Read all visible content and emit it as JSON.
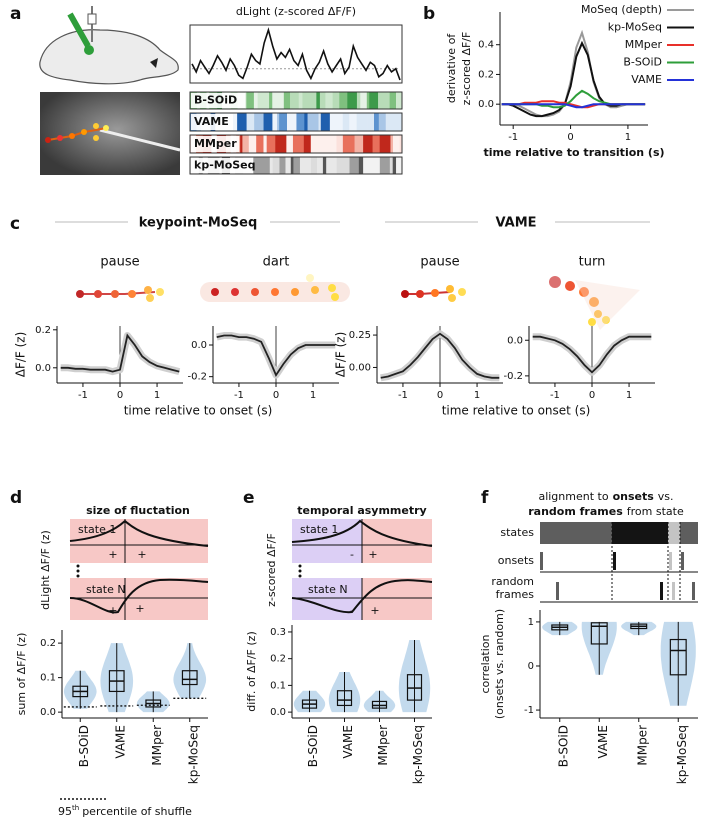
{
  "panel_labels": [
    "a",
    "b",
    "c",
    "d",
    "e",
    "f"
  ],
  "chart_data": [
    {
      "type": "trace",
      "title": "dLight (z-scored ΔF/F)",
      "color": "#111111",
      "hlines": [
        0
      ],
      "values": [
        0.3,
        -0.2,
        0.5,
        0.1,
        -0.3,
        0.2,
        0.8,
        0.4,
        -0.1,
        0.6,
        0.2,
        -0.4,
        -0.6,
        0.1,
        0.9,
        0.5,
        0.3,
        1.6,
        2.4,
        1.4,
        0.6,
        1.0,
        0.7,
        1.2,
        0.5,
        0.2,
        0.9,
        -0.1,
        -0.6,
        0.0,
        0.4,
        1.1,
        0.3,
        -0.2,
        0.2,
        0.6,
        -0.3,
        0.1,
        1.4,
        0.7,
        0.3,
        -0.1,
        0.4,
        0.2,
        -0.5,
        -0.3,
        0.2,
        -0.2,
        0.0,
        -0.7
      ],
      "ethogram_labels": [
        "B-SOiD",
        "VAME",
        "MMper",
        "kp-MoSeq"
      ]
    },
    {
      "type": "line",
      "xlabel": "time relative to transition (s)",
      "ylabel": [
        "derivative of",
        "z-scored ΔF/F"
      ],
      "x": [
        -1.2,
        -1.1,
        -1.0,
        -0.9,
        -0.8,
        -0.7,
        -0.6,
        -0.5,
        -0.4,
        -0.3,
        -0.2,
        -0.1,
        0,
        0.1,
        0.2,
        0.3,
        0.4,
        0.5,
        0.6,
        0.7,
        0.8,
        0.9,
        1.0,
        1.1,
        1.2,
        1.3
      ],
      "series": [
        {
          "name": "MoSeq (depth)",
          "color": "#9a9a9a",
          "values": [
            0,
            0,
            0,
            -0.01,
            -0.03,
            -0.05,
            -0.07,
            -0.08,
            -0.08,
            -0.07,
            -0.05,
            0.0,
            0.15,
            0.38,
            0.48,
            0.35,
            0.15,
            0.04,
            0,
            -0.02,
            -0.02,
            -0.01,
            0,
            0,
            0,
            0
          ]
        },
        {
          "name": "kp-MoSeq",
          "color": "#111111",
          "values": [
            0,
            0,
            -0.01,
            -0.03,
            -0.05,
            -0.07,
            -0.08,
            -0.08,
            -0.07,
            -0.06,
            -0.04,
            0.0,
            0.12,
            0.32,
            0.41,
            0.33,
            0.16,
            0.05,
            0,
            -0.01,
            -0.01,
            0,
            0,
            0,
            0,
            0
          ]
        },
        {
          "name": "MMper",
          "color": "#e8302a",
          "values": [
            0,
            0,
            0,
            0,
            0.01,
            0.01,
            0.01,
            0.02,
            0.02,
            0.02,
            0.01,
            0.01,
            0,
            -0.01,
            -0.02,
            -0.02,
            -0.01,
            0,
            0,
            0,
            0,
            0,
            0,
            0,
            0,
            0
          ]
        },
        {
          "name": "B-SOiD",
          "color": "#2e9e3a",
          "values": [
            0,
            0,
            0,
            0,
            0,
            0,
            0,
            -0.01,
            -0.01,
            -0.02,
            -0.02,
            -0.01,
            0.02,
            0.06,
            0.09,
            0.07,
            0.04,
            0.02,
            0.01,
            0,
            0,
            0,
            0,
            0,
            0,
            0
          ]
        },
        {
          "name": "VAME",
          "color": "#2432d8",
          "values": [
            0,
            0,
            0,
            0,
            0,
            0,
            0,
            0,
            0,
            0,
            0,
            0,
            -0.01,
            -0.02,
            -0.02,
            -0.01,
            0,
            0,
            0,
            0,
            0,
            0,
            0,
            0,
            0,
            0
          ]
        }
      ],
      "xlim": [
        -1.23,
        1.35
      ],
      "ylim": [
        -0.14,
        0.62
      ],
      "xticks": [
        -1,
        0,
        1
      ],
      "yticks": [
        {
          "value": 0,
          "label": "0.0"
        },
        {
          "value": 0.2,
          "label": "0.2"
        },
        {
          "value": 0.4,
          "label": "0.4"
        }
      ],
      "legend": "upper right"
    },
    {
      "type": "line",
      "group": "keypoint-MoSeq",
      "title": "pause",
      "ylabel": "ΔF/F (z)",
      "xlabel": "time relative to onset (s)",
      "color": "#222222",
      "x": [
        -1.6,
        -1.4,
        -1.2,
        -1.0,
        -0.8,
        -0.6,
        -0.4,
        -0.2,
        0,
        0.2,
        0.4,
        0.6,
        0.8,
        1.0,
        1.2,
        1.4,
        1.6
      ],
      "values": [
        0.0,
        0.0,
        -0.005,
        -0.005,
        -0.01,
        -0.01,
        -0.01,
        -0.02,
        -0.01,
        0.17,
        0.12,
        0.06,
        0.03,
        0.01,
        0.0,
        -0.01,
        -0.02
      ],
      "xlim": [
        -1.7,
        1.7
      ],
      "ylim": [
        -0.08,
        0.22
      ],
      "xticks": [
        -1,
        0,
        1
      ],
      "yticks": [
        {
          "value": 0,
          "label": "0.0"
        },
        {
          "value": 0.2,
          "label": "0.2"
        }
      ],
      "vlines": [
        0
      ]
    },
    {
      "type": "line",
      "title": "dart",
      "color": "#222222",
      "x": [
        -1.6,
        -1.4,
        -1.2,
        -1.0,
        -0.8,
        -0.6,
        -0.4,
        -0.2,
        0,
        0.2,
        0.4,
        0.6,
        0.8,
        1.0,
        1.2,
        1.4,
        1.6
      ],
      "values": [
        0.05,
        0.06,
        0.06,
        0.05,
        0.05,
        0.04,
        0.02,
        -0.08,
        -0.19,
        -0.12,
        -0.06,
        -0.02,
        0,
        0,
        0,
        0,
        0
      ],
      "xlim": [
        -1.7,
        1.7
      ],
      "ylim": [
        -0.24,
        0.12
      ],
      "xticks": [
        -1,
        0,
        1
      ],
      "yticks": [
        {
          "value": 0,
          "label": "0.0"
        },
        -0.2
      ],
      "vlines": [
        0
      ]
    },
    {
      "type": "line",
      "group": "VAME",
      "title": "pause",
      "ylabel": "ΔF/F (z)",
      "xlabel": "time relative to onset (s)",
      "color": "#222222",
      "x": [
        -1.6,
        -1.4,
        -1.2,
        -1.0,
        -0.8,
        -0.6,
        -0.4,
        -0.2,
        0,
        0.2,
        0.4,
        0.6,
        0.8,
        1.0,
        1.2,
        1.4,
        1.6
      ],
      "values": [
        -0.08,
        -0.07,
        -0.05,
        -0.03,
        0.02,
        0.08,
        0.15,
        0.22,
        0.26,
        0.22,
        0.15,
        0.06,
        0,
        -0.05,
        -0.07,
        -0.08,
        -0.08
      ],
      "xlim": [
        -1.7,
        1.7
      ],
      "ylim": [
        -0.12,
        0.32
      ],
      "xticks": [
        -1,
        0,
        1
      ],
      "yticks": [
        {
          "value": 0,
          "label": "0.00"
        },
        0.25
      ],
      "vlines": [
        0
      ]
    },
    {
      "type": "line",
      "title": "turn",
      "color": "#222222",
      "x": [
        -1.6,
        -1.4,
        -1.2,
        -1.0,
        -0.8,
        -0.6,
        -0.4,
        -0.2,
        0,
        0.2,
        0.4,
        0.6,
        0.8,
        1.0,
        1.2,
        1.4,
        1.6
      ],
      "values": [
        0.02,
        0.02,
        0.01,
        0.0,
        -0.02,
        -0.05,
        -0.09,
        -0.14,
        -0.18,
        -0.14,
        -0.08,
        -0.03,
        0.0,
        0.02,
        0.02,
        0.02,
        0.02
      ],
      "xlim": [
        -1.7,
        1.7
      ],
      "ylim": [
        -0.24,
        0.08
      ],
      "xticks": [
        -1,
        0,
        1
      ],
      "yticks": [
        {
          "value": 0,
          "label": "0.0"
        },
        -0.2
      ],
      "vlines": [
        0
      ]
    },
    {
      "type": "box",
      "title": "size of fluctation",
      "ylabel": "sum of ΔF/F (z)",
      "color": "#b9d3ea",
      "schematic": {
        "ylabel": "dLight ΔF/F (z)",
        "states": [
          "state 1",
          "state N"
        ],
        "signs": [
          "+",
          "+",
          "+",
          "+"
        ]
      },
      "categories": [
        "B-SOiD",
        "VAME",
        "MMper",
        "kp-MoSeq"
      ],
      "boxes": [
        {
          "low": 0.01,
          "q1": 0.045,
          "median": 0.06,
          "q3": 0.075,
          "high": 0.12
        },
        {
          "low": 0.0,
          "q1": 0.06,
          "median": 0.09,
          "q3": 0.12,
          "high": 0.2
        },
        {
          "low": 0.0,
          "q1": 0.015,
          "median": 0.025,
          "q3": 0.035,
          "high": 0.06
        },
        {
          "low": 0.04,
          "q1": 0.08,
          "median": 0.095,
          "q3": 0.12,
          "high": 0.2
        }
      ],
      "shuffle_95": [
        0.015,
        0.018,
        0.02,
        0.04
      ],
      "shuffle_legend": [
        "95",
        "th",
        "percentile of shuffle"
      ],
      "ylim": [
        -0.017,
        0.238
      ],
      "yticks": [
        {
          "value": 0,
          "label": "0.0"
        },
        {
          "value": 0.1,
          "label": "0.1"
        },
        {
          "value": 0.2,
          "label": "0.2"
        }
      ]
    },
    {
      "type": "box",
      "title": "temporal asymmetry",
      "ylabel": "diff. of ΔF/F (z)",
      "color": "#b9d3ea",
      "schematic": {
        "ylabel": "z-scored ΔF/F",
        "states": [
          "state 1",
          "state N"
        ],
        "signs": [
          "-",
          "+",
          "-",
          "+"
        ]
      },
      "categories": [
        "B-SOiD",
        "VAME",
        "MMper",
        "kp-MoSeq"
      ],
      "boxes": [
        {
          "low": 0.0,
          "q1": 0.015,
          "median": 0.03,
          "q3": 0.045,
          "high": 0.08
        },
        {
          "low": 0.0,
          "q1": 0.025,
          "median": 0.045,
          "q3": 0.08,
          "high": 0.15
        },
        {
          "low": 0.0,
          "q1": 0.015,
          "median": 0.025,
          "q3": 0.04,
          "high": 0.08
        },
        {
          "low": 0.0,
          "q1": 0.045,
          "median": 0.09,
          "q3": 0.14,
          "high": 0.27
        }
      ],
      "ylim": [
        -0.022,
        0.326
      ],
      "yticks": [
        {
          "value": 0,
          "label": "0.0"
        },
        {
          "value": 0.1,
          "label": "0.1"
        },
        {
          "value": 0.2,
          "label": "0.2"
        },
        {
          "value": 0.3,
          "label": "0.3"
        }
      ]
    },
    {
      "type": "box",
      "title": [
        [
          "alignment to",
          "onsets",
          "vs."
        ],
        [
          "random frames",
          "from state"
        ]
      ],
      "ylabel": [
        "correlation",
        "(onsets vs. random)"
      ],
      "color": "#b9d3ea",
      "schematic": {
        "rows": [
          "states",
          "onsets",
          [
            "random",
            "frames"
          ]
        ]
      },
      "categories": [
        "B-SOiD",
        "VAME",
        "MMper",
        "kp-MoSeq"
      ],
      "boxes": [
        {
          "low": 0.7,
          "q1": 0.82,
          "median": 0.88,
          "q3": 0.93,
          "high": 1.0
        },
        {
          "low": -0.2,
          "q1": 0.5,
          "median": 0.9,
          "q3": 0.98,
          "high": 1.0
        },
        {
          "low": 0.7,
          "q1": 0.85,
          "median": 0.9,
          "q3": 0.95,
          "high": 1.0
        },
        {
          "low": -0.9,
          "q1": -0.2,
          "median": 0.35,
          "q3": 0.6,
          "high": 1.0
        }
      ],
      "ylim": [
        -1.18,
        1.27
      ],
      "yticks": [
        -1,
        0,
        1
      ]
    }
  ]
}
